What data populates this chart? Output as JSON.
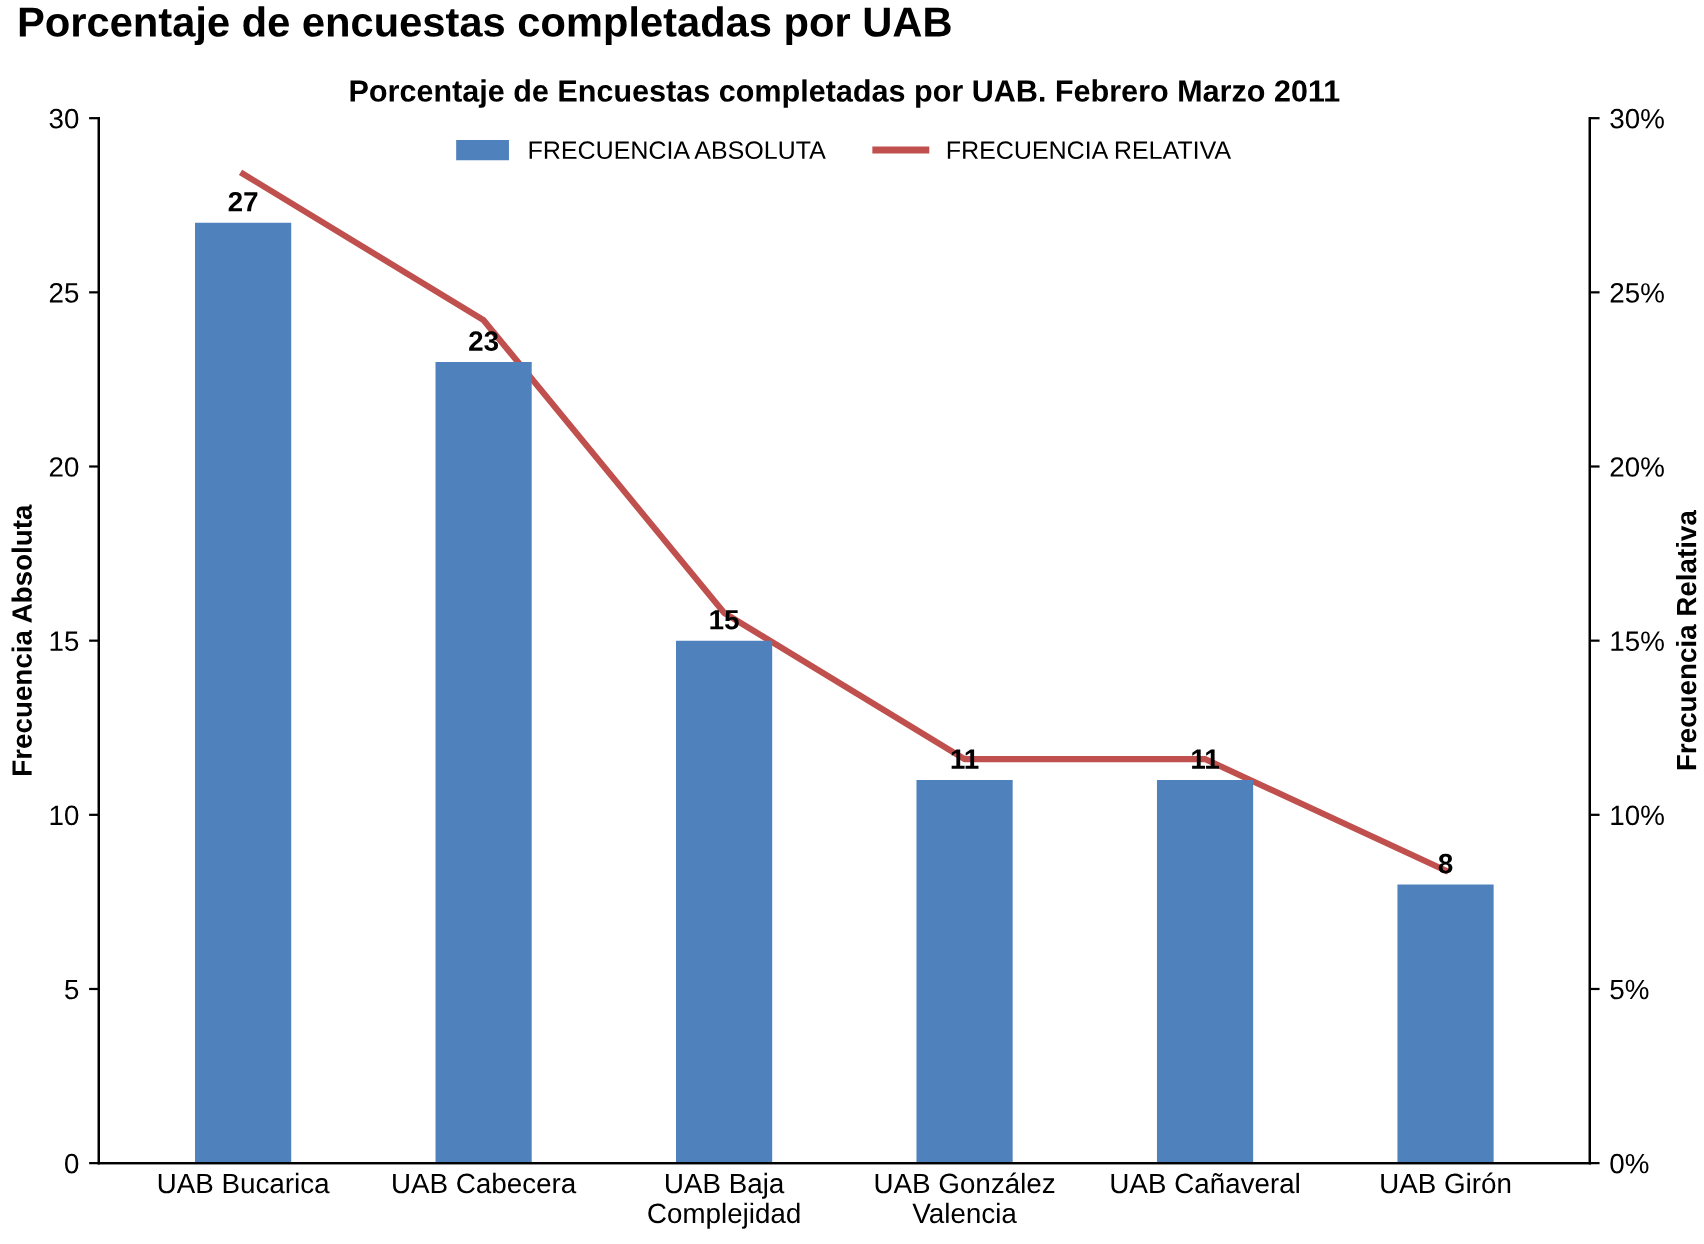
{
  "chart_data": {
    "type": "bar",
    "title": "Porcentaje de encuestas completadas por UAB",
    "subtitle": "Porcentaje de Encuestas completadas por UAB. Febrero Marzo 2011",
    "categories": [
      "UAB Bucarica",
      "UAB Cabecera",
      "UAB Baja\nComplejidad",
      "UAB González\nValencia",
      "UAB Cañaveral",
      "UAB Girón"
    ],
    "series": [
      {
        "name": "FRECUENCIA ABSOLUTA",
        "color": "#4f81bd",
        "values": [
          27,
          23,
          15,
          11,
          11,
          8
        ],
        "value_labels": [
          "27",
          "23",
          "15",
          "11",
          "11",
          "8"
        ]
      },
      {
        "name": "FRECUENCIA RELATIVA",
        "type": "line",
        "axis": "y2",
        "color": "#c0504d",
        "values": [
          28.4,
          24.2,
          15.8,
          11.6,
          11.6,
          8.4
        ]
      }
    ],
    "ylabel": "Frecuencia Absoluta",
    "y2label": "Frecuencia Relativa",
    "ylim": [
      0,
      30
    ],
    "yticks": [
      0,
      5,
      10,
      15,
      20,
      25,
      30
    ],
    "y2lim": [
      0,
      30
    ],
    "y2ticks": [
      {
        "value": 0,
        "label": "0%"
      },
      {
        "value": 5,
        "label": "5%"
      },
      {
        "value": 10,
        "label": "10%"
      },
      {
        "value": 15,
        "label": "15%"
      },
      {
        "value": 20,
        "label": "20%"
      },
      {
        "value": 25,
        "label": "25%"
      },
      {
        "value": 30,
        "label": "30%"
      }
    ],
    "legend": "top",
    "grid": false,
    "marker": "none",
    "line_style": "solid"
  }
}
